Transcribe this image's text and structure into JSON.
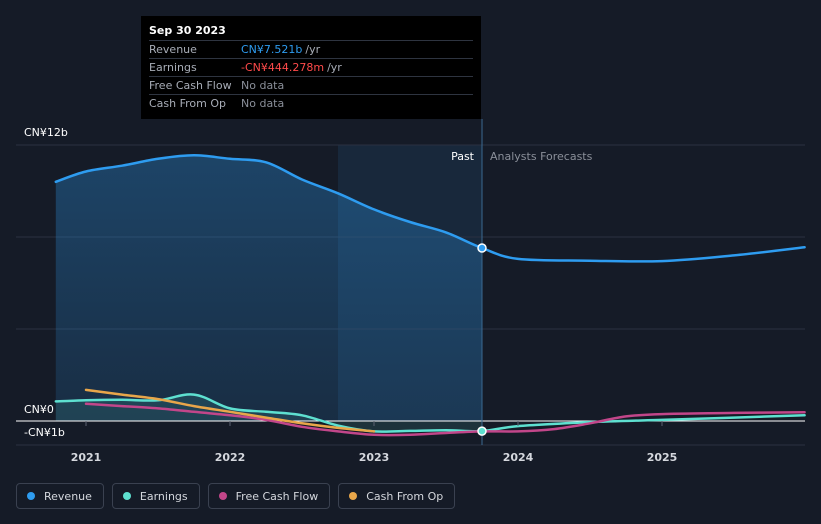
{
  "tooltip": {
    "date": "Sep 30 2023",
    "rows": [
      {
        "label": "Revenue",
        "value": "CN¥7.521b",
        "unit": "/yr"
      },
      {
        "label": "Earnings",
        "value": "-CN¥444.278m",
        "unit": "/yr"
      },
      {
        "label": "Free Cash Flow",
        "value": "No data",
        "unit": ""
      },
      {
        "label": "Cash From Op",
        "value": "No data",
        "unit": ""
      }
    ]
  },
  "legend": [
    {
      "label": "Revenue",
      "color": "#2e9cf0"
    },
    {
      "label": "Earnings",
      "color": "#5ee0d0"
    },
    {
      "label": "Free Cash Flow",
      "color": "#c2468a"
    },
    {
      "label": "Cash From Op",
      "color": "#e8a64a"
    }
  ],
  "chart_data": {
    "type": "line",
    "title": "",
    "xlabel": "",
    "ylabel": "",
    "x_ticks": [
      "2021",
      "2022",
      "2023",
      "2024",
      "2025"
    ],
    "y_tick_labels": [
      {
        "value": 12,
        "label": "CN¥12b"
      },
      {
        "value": 0,
        "label": "CN¥0"
      },
      {
        "value": -1,
        "label": "-CN¥1b"
      }
    ],
    "ylim": [
      -1,
      12
    ],
    "xlim": [
      2020.57,
      2025.99
    ],
    "grid": true,
    "divider": {
      "x": 2023.75,
      "past_label": "Past",
      "forecast_label": "Analysts Forecasts"
    },
    "highlight_start": 2022.75,
    "marker_x": 2023.75,
    "series": [
      {
        "name": "Revenue",
        "color": "#2e9cf0",
        "fill": true,
        "points": [
          [
            2020.79,
            10.4
          ],
          [
            2021.0,
            10.85
          ],
          [
            2021.25,
            11.1
          ],
          [
            2021.5,
            11.4
          ],
          [
            2021.75,
            11.55
          ],
          [
            2022.0,
            11.4
          ],
          [
            2022.25,
            11.25
          ],
          [
            2022.5,
            10.5
          ],
          [
            2022.75,
            9.9
          ],
          [
            2023.0,
            9.2
          ],
          [
            2023.25,
            8.65
          ],
          [
            2023.5,
            8.2
          ],
          [
            2023.75,
            7.52
          ],
          [
            2024.0,
            7.05
          ],
          [
            2024.5,
            6.97
          ],
          [
            2025.0,
            6.95
          ],
          [
            2025.5,
            7.2
          ],
          [
            2025.99,
            7.55
          ]
        ]
      },
      {
        "name": "Earnings",
        "color": "#5ee0d0",
        "fill": true,
        "points": [
          [
            2020.79,
            0.85
          ],
          [
            2021.0,
            0.9
          ],
          [
            2021.25,
            0.92
          ],
          [
            2021.5,
            0.9
          ],
          [
            2021.75,
            1.15
          ],
          [
            2022.0,
            0.55
          ],
          [
            2022.25,
            0.4
          ],
          [
            2022.5,
            0.25
          ],
          [
            2022.75,
            -0.2
          ],
          [
            2023.0,
            -0.45
          ],
          [
            2023.25,
            -0.43
          ],
          [
            2023.5,
            -0.4
          ],
          [
            2023.75,
            -0.44
          ],
          [
            2024.0,
            -0.22
          ],
          [
            2024.5,
            -0.05
          ],
          [
            2025.0,
            0.05
          ],
          [
            2025.5,
            0.15
          ],
          [
            2025.99,
            0.25
          ]
        ]
      },
      {
        "name": "Free Cash Flow",
        "color": "#c2468a",
        "fill": false,
        "points": [
          [
            2021.0,
            0.75
          ],
          [
            2021.25,
            0.65
          ],
          [
            2021.5,
            0.55
          ],
          [
            2021.75,
            0.4
          ],
          [
            2022.0,
            0.25
          ],
          [
            2022.25,
            0.05
          ],
          [
            2022.5,
            -0.25
          ],
          [
            2022.75,
            -0.45
          ],
          [
            2023.0,
            -0.6
          ],
          [
            2023.25,
            -0.6
          ],
          [
            2023.5,
            -0.52
          ],
          [
            2023.75,
            -0.45
          ],
          [
            2024.0,
            -0.45
          ],
          [
            2024.25,
            -0.35
          ],
          [
            2024.5,
            -0.1
          ],
          [
            2024.75,
            0.2
          ],
          [
            2025.0,
            0.3
          ],
          [
            2025.5,
            0.35
          ],
          [
            2025.99,
            0.38
          ]
        ]
      },
      {
        "name": "Cash From Op",
        "color": "#e8a64a",
        "fill": false,
        "points": [
          [
            2021.0,
            1.35
          ],
          [
            2021.25,
            1.15
          ],
          [
            2021.5,
            0.95
          ],
          [
            2021.75,
            0.65
          ],
          [
            2022.0,
            0.4
          ],
          [
            2022.25,
            0.15
          ],
          [
            2022.5,
            -0.1
          ],
          [
            2022.75,
            -0.3
          ],
          [
            2023.0,
            -0.45
          ]
        ]
      }
    ]
  }
}
